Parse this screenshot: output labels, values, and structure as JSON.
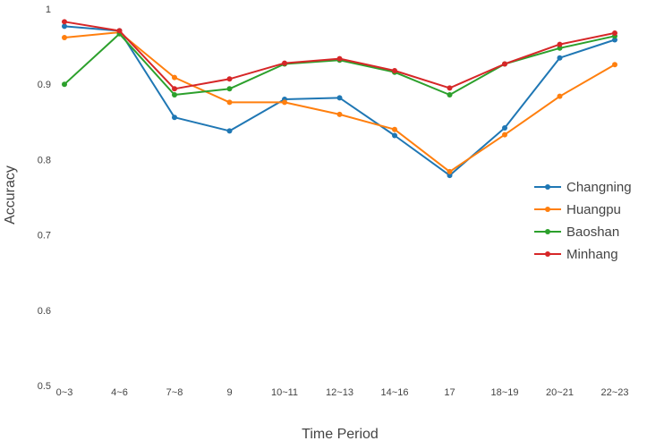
{
  "chart_data": {
    "type": "line",
    "title": "",
    "xlabel": "Time Period",
    "ylabel": "Accuracy",
    "categories": [
      "0~3",
      "4~6",
      "7~8",
      "9",
      "10~11",
      "12~13",
      "14~16",
      "17",
      "18~19",
      "20~21",
      "22~23"
    ],
    "yticks": [
      "0.5",
      "0.6",
      "0.7",
      "0.8",
      "0.9",
      "1"
    ],
    "ylim": [
      0.5,
      1.0
    ],
    "grid": false,
    "legend_position": "right",
    "series": [
      {
        "name": "Changning",
        "color": "#1f77b4",
        "values": [
          0.977,
          0.971,
          0.856,
          0.838,
          0.88,
          0.882,
          0.832,
          0.779,
          0.842,
          0.935,
          0.959
        ]
      },
      {
        "name": "Huangpu",
        "color": "#ff7f0e",
        "values": [
          0.962,
          0.969,
          0.909,
          0.876,
          0.876,
          0.86,
          0.84,
          0.784,
          0.833,
          0.884,
          0.926
        ]
      },
      {
        "name": "Baoshan",
        "color": "#2ca02c",
        "values": [
          0.9,
          0.967,
          0.886,
          0.894,
          0.927,
          0.932,
          0.916,
          0.886,
          0.927,
          0.948,
          0.964
        ]
      },
      {
        "name": "Minhang",
        "color": "#d62728",
        "values": [
          0.983,
          0.971,
          0.894,
          0.907,
          0.928,
          0.934,
          0.918,
          0.895,
          0.927,
          0.953,
          0.968
        ]
      }
    ]
  }
}
